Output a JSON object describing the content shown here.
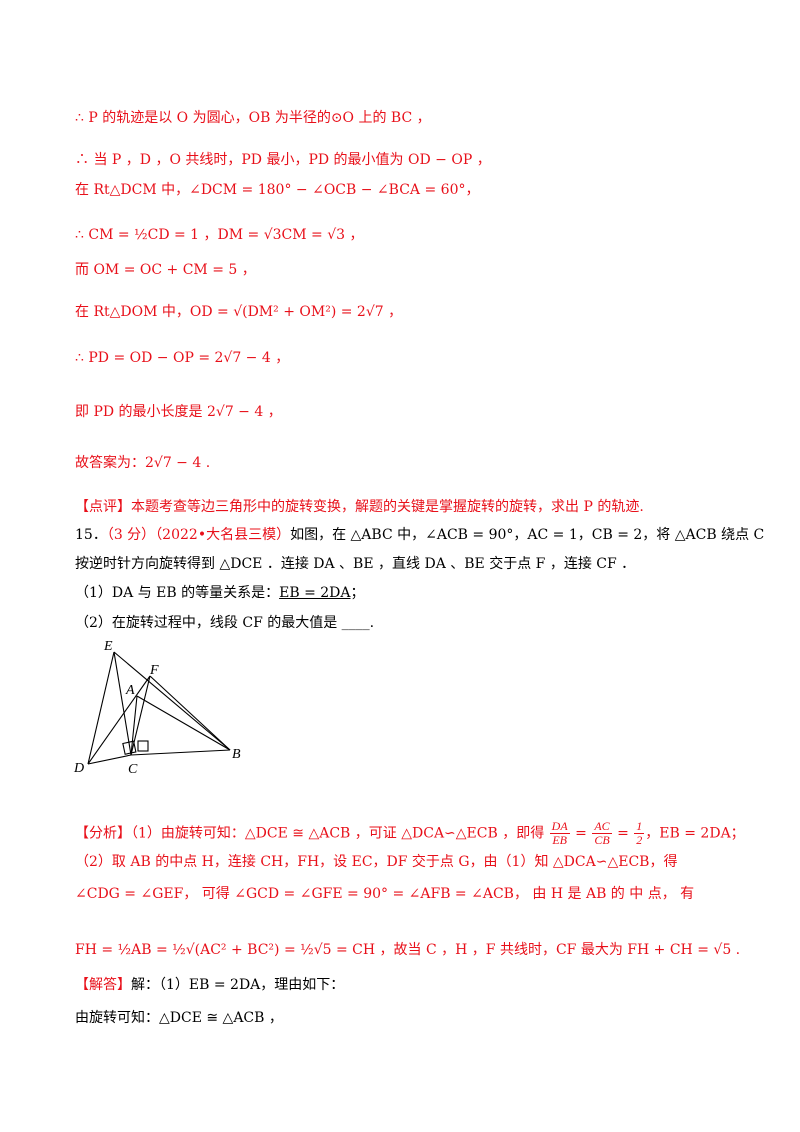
{
  "solution_cont": [
    {
      "text": "∴ P 的轨迹是以 O 为圆心，OB 为半径的⊙O 上的 BC ，",
      "color": "red"
    },
    {
      "text": "∴ 当 P ，D ，O 共线时，PD 最小，PD 的最小值为 OD − OP ，",
      "color": "red"
    },
    {
      "text": "在 Rt△DCM 中，∠DCM = 180° − ∠OCB − ∠BCA = 60°，",
      "color": "red"
    },
    {
      "text": "∴ CM = ½CD = 1 ，DM = √3CM = √3 ，",
      "color": "red"
    },
    {
      "text": "而 OM = OC + CM = 5 ，",
      "color": "red"
    },
    {
      "text": "在 Rt△DOM 中，OD = √(DM² + OM²) = 2√7 ，",
      "color": "red"
    },
    {
      "text": "∴ PD = OD − OP = 2√7 − 4 ，",
      "color": "red"
    },
    {
      "text": "即 PD 的最小长度是 2√7 − 4 ，",
      "color": "red"
    },
    {
      "text": "故答案为：2√7 − 4 .",
      "color": "red"
    }
  ],
  "comment": {
    "tag": "【点评】",
    "text": "本题考查等边三角形中的旋转变换，解题的关键是掌握旋转的旋转，求出 P 的轨迹."
  },
  "problem": {
    "number": "15．",
    "score": "（3 分）",
    "source": "（2022•大名县三模）",
    "line1": "如图，在 △ABC 中，∠ACB = 90°，AC = 1，CB = 2，将 △ACB 绕点 C",
    "line2": "按逆时针方向旋转得到 △DCE ．连接 DA 、BE ，直线 DA 、BE 交于点 F ，连接 CF ．",
    "q1_prefix": "（1）DA 与 EB 的等量关系是：",
    "q1_answer": "EB = 2DA",
    "q1_suffix": "；",
    "q2": "（2）在旋转过程中，线段 CF 的最大值是 ____."
  },
  "figure": {
    "labels": {
      "E": "E",
      "F": "F",
      "A": "A",
      "D": "D",
      "C": "C",
      "B": "B"
    }
  },
  "analysis": {
    "tag": "【分析】",
    "line1a": "（1）由旋转可知：△DCE ≅ △ACB ，可证 △DCA∽△ECB ，即得",
    "frac1_num": "DA",
    "frac1_den": "EB",
    "eq1": " = ",
    "frac2_num": "AC",
    "frac2_den": "CB",
    "eq2": " = ",
    "frac3_num": "1",
    "frac3_den": "2",
    "line1b": "，EB = 2DA；",
    "line2": "（2）取 AB 的中点 H，连接 CH，FH，设 EC，DF 交于点 G，由（1）知 △DCA∽△ECB，得",
    "line3": "∠CDG = ∠GEF，  可得  ∠GCD = ∠GFE = 90° = ∠AFB = ∠ACB，  由  H 是  AB 的  中  点，  有",
    "line4": "FH = ½AB = ½√(AC² + BC²) = ½√5 = CH ，故当 C ，H ，F 共线时，CF 最大为 FH + CH = √5 ."
  },
  "answer": {
    "tag": "【解答】",
    "line1": "解：（1）EB = 2DA，理由如下：",
    "line2": "由旋转可知：△DCE ≅ △ACB ，"
  }
}
